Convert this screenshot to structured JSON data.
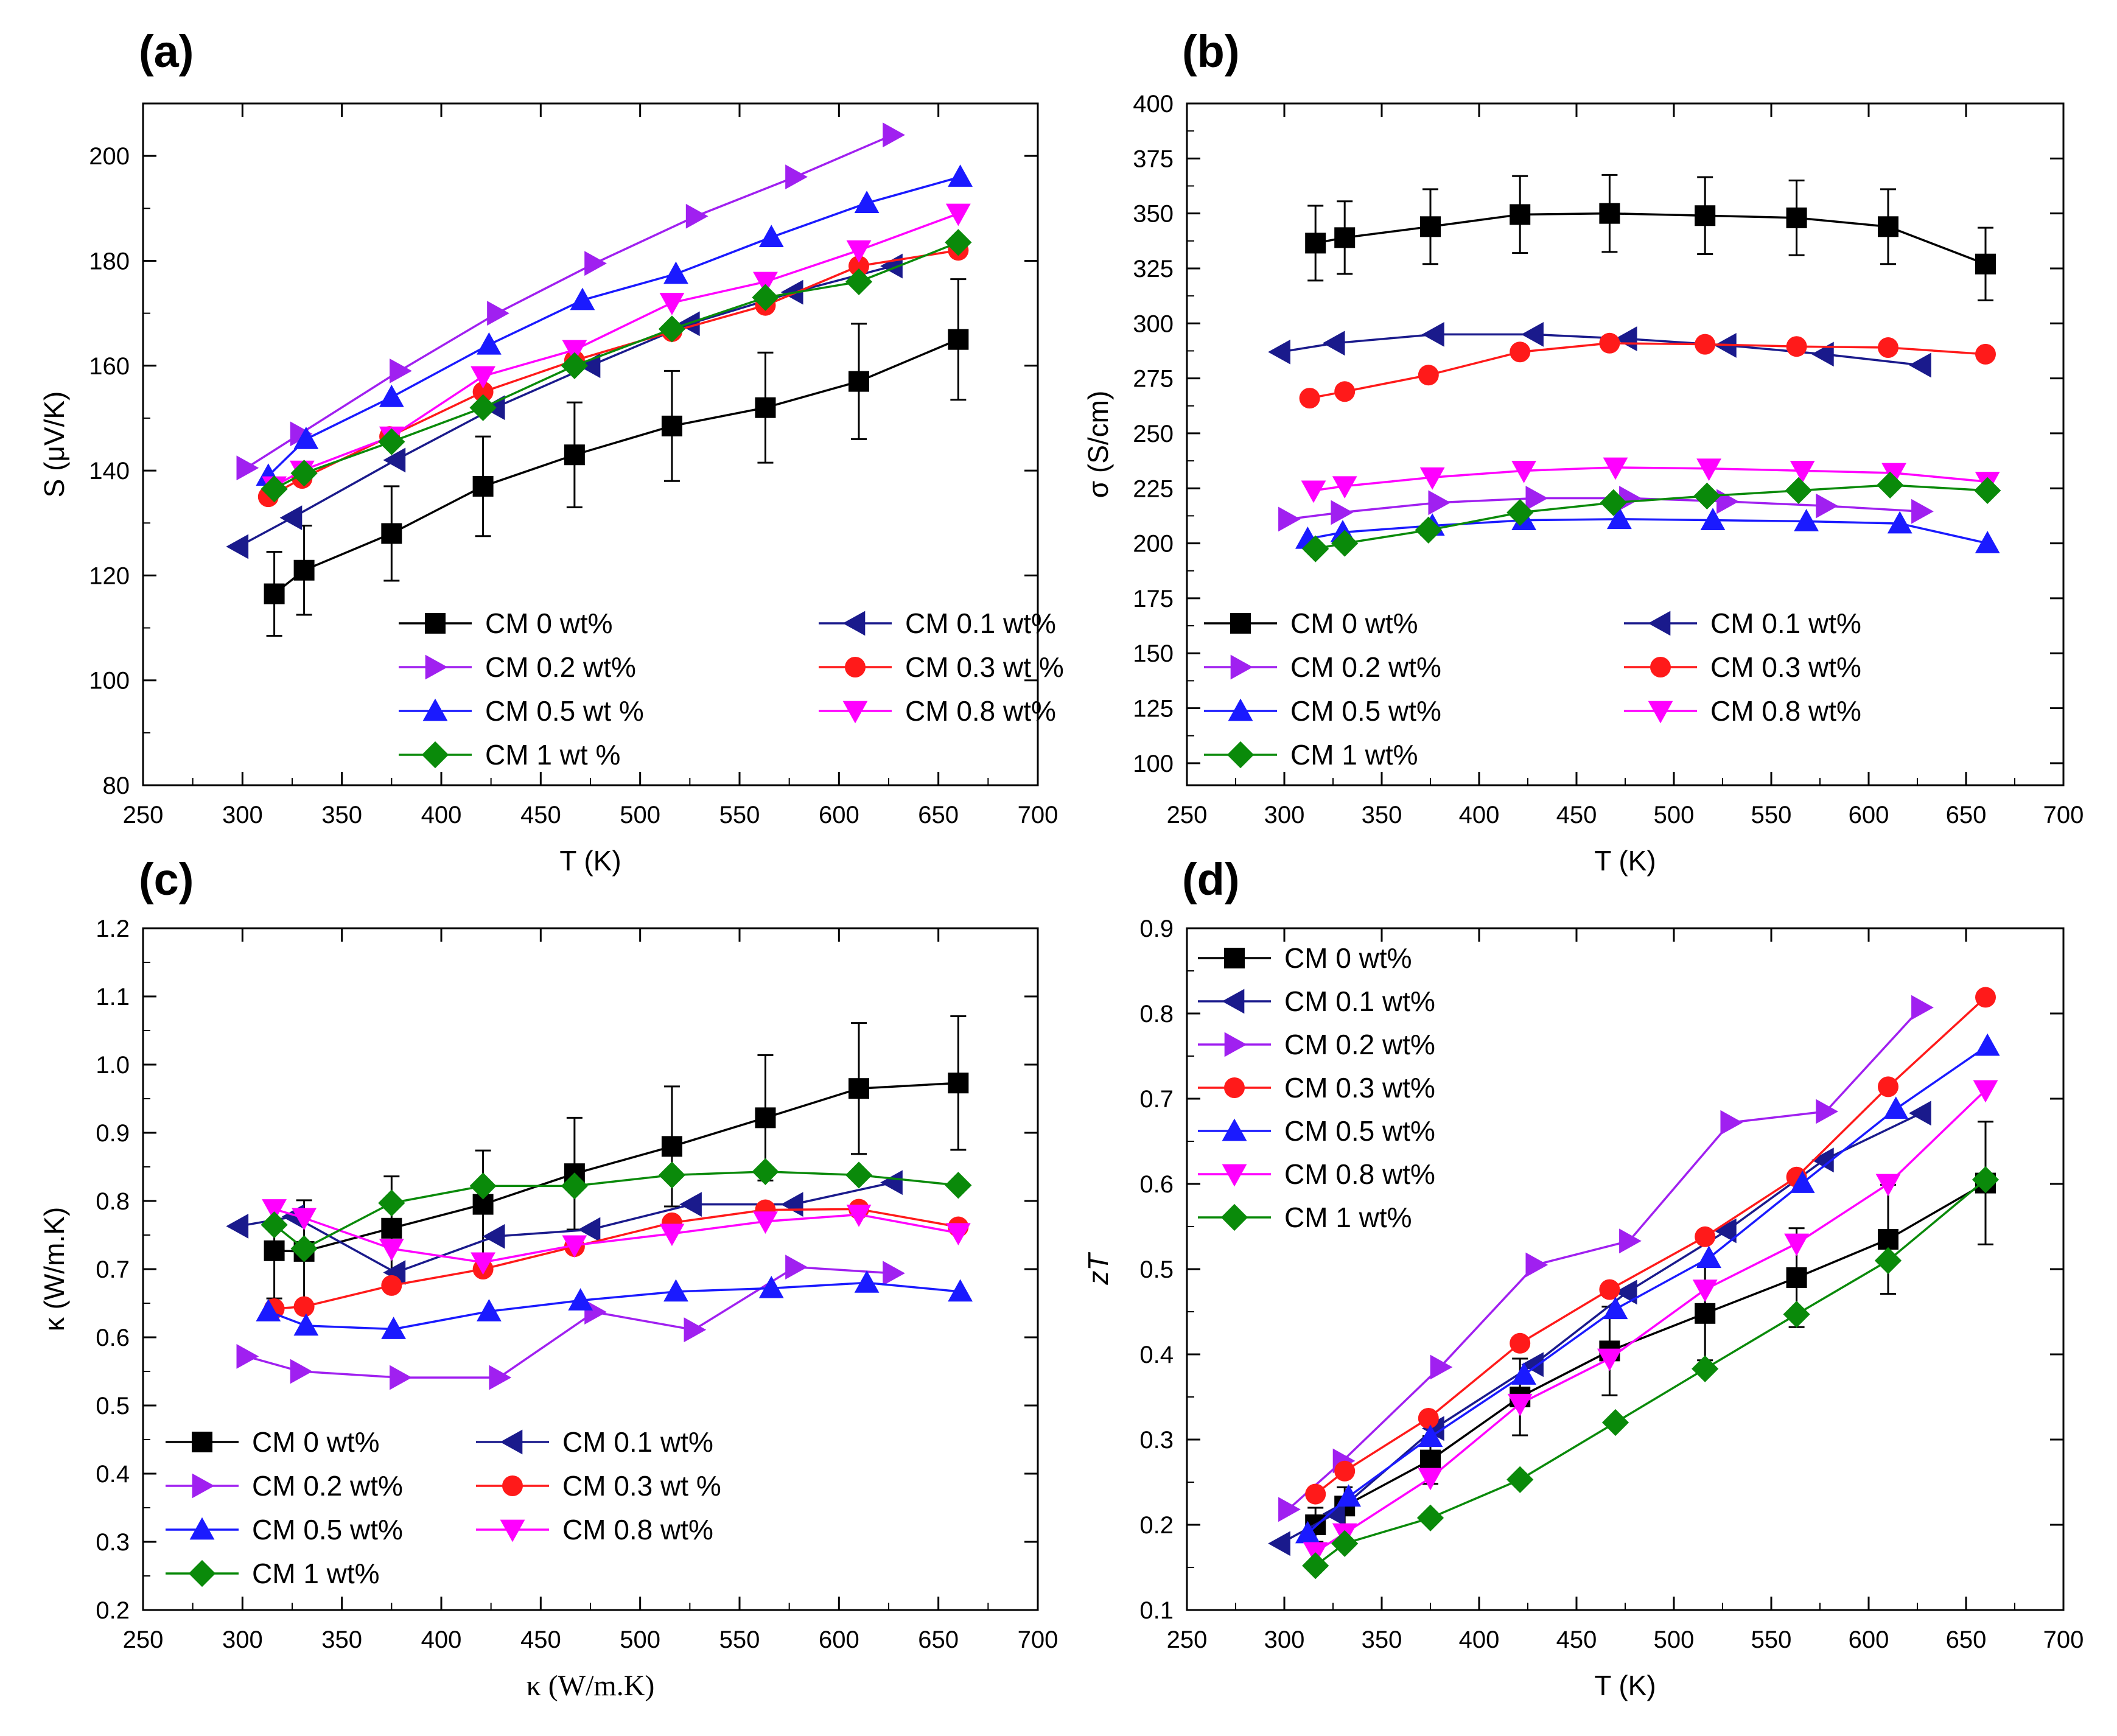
{
  "chart_data": [
    {
      "panel": "(a)",
      "type": "line",
      "xlabel": "T (K)",
      "ylabel": "S (μV/K)",
      "xlim": [
        250,
        700
      ],
      "ylim": [
        80,
        210
      ],
      "xticks": [
        250,
        300,
        350,
        400,
        450,
        500,
        550,
        600,
        650,
        700
      ],
      "yticks": [
        80,
        100,
        120,
        140,
        160,
        180,
        200
      ],
      "legend_position": "lower-right",
      "legend_cols": 2,
      "series": [
        {
          "name": "CM 0 wt%",
          "color": "#000000",
          "marker": "square",
          "x": [
            316,
            331,
            375,
            421,
            467,
            516,
            563,
            610,
            660
          ],
          "y": [
            116.5,
            121,
            128,
            137,
            143,
            148.5,
            152,
            157,
            165
          ],
          "err": [
            8,
            8.5,
            9,
            9.5,
            10,
            10.5,
            10.5,
            11,
            11.5
          ]
        },
        {
          "name": "CM 0.1 wt%",
          "color": "#1a1a8c",
          "marker": "triangle-left",
          "x": [
            298,
            325,
            377,
            427,
            475,
            525,
            577,
            627
          ],
          "y": [
            125.5,
            131,
            142,
            152,
            160,
            168,
            174,
            179
          ]
        },
        {
          "name": "CM 0.2 wt%",
          "color": "#a020f0",
          "marker": "triangle-right",
          "x": [
            302,
            329,
            379,
            428,
            477,
            528,
            578,
            627
          ],
          "y": [
            140.5,
            147,
            159,
            170,
            179.5,
            188.5,
            196,
            204
          ]
        },
        {
          "name": "CM 0.3 wt %",
          "color": "#ff1a1a",
          "marker": "circle",
          "x": [
            313,
            330,
            374,
            421,
            467,
            516,
            563,
            610,
            660
          ],
          "y": [
            135,
            138.5,
            146.5,
            155,
            161,
            166.5,
            171.5,
            179,
            182
          ]
        },
        {
          "name": "CM 0.5 wt %",
          "color": "#1a1aff",
          "marker": "triangle-up",
          "x": [
            313,
            332,
            375,
            424,
            471,
            518,
            566,
            614,
            661
          ],
          "y": [
            139,
            146,
            154,
            164,
            172.5,
            177.5,
            184.5,
            191,
            196
          ]
        },
        {
          "name": "CM 0.8 wt%",
          "color": "#ff00ff",
          "marker": "triangle-down",
          "x": [
            316,
            330,
            375,
            421,
            467,
            516,
            563,
            610,
            660
          ],
          "y": [
            137,
            140,
            146.5,
            158,
            163,
            172,
            176,
            182,
            189
          ]
        },
        {
          "name": "CM 1 wt %",
          "color": "#0a8a0a",
          "marker": "diamond",
          "x": [
            316,
            331,
            375,
            421,
            467,
            516,
            563,
            610,
            660
          ],
          "y": [
            136.5,
            139.5,
            145.5,
            152,
            160,
            167,
            173,
            176,
            183.5
          ]
        }
      ]
    },
    {
      "panel": "(b)",
      "type": "line",
      "xlabel": "T (K)",
      "ylabel": "σ (S/cm)",
      "xlim": [
        250,
        700
      ],
      "ylim": [
        90,
        400
      ],
      "xticks": [
        250,
        300,
        350,
        400,
        450,
        500,
        550,
        600,
        650,
        700
      ],
      "yticks": [
        100,
        125,
        150,
        175,
        200,
        225,
        250,
        275,
        300,
        325,
        350,
        375,
        400
      ],
      "legend_position": "lower-left",
      "legend_cols": 2,
      "series": [
        {
          "name": "CM 0 wt%",
          "color": "#000000",
          "marker": "square",
          "x": [
            316,
            331,
            375,
            421,
            467,
            516,
            563,
            610,
            660
          ],
          "y": [
            336.5,
            339,
            344,
            349.5,
            350,
            349,
            348,
            344,
            327
          ],
          "err": [
            17,
            16.5,
            17,
            17.5,
            17.5,
            17.5,
            17,
            17,
            16.5
          ]
        },
        {
          "name": "CM 0.1 wt%",
          "color": "#1a1a8c",
          "marker": "triangle-left",
          "x": [
            298,
            326,
            377,
            428,
            476,
            527,
            577,
            627
          ],
          "y": [
            287,
            291,
            295,
            295,
            293,
            290,
            286,
            281
          ]
        },
        {
          "name": "CM 0.2 wt%",
          "color": "#a020f0",
          "marker": "triangle-right",
          "x": [
            302,
            329,
            379,
            429,
            477,
            527,
            578,
            627
          ],
          "y": [
            211,
            214,
            218.5,
            220.5,
            220.5,
            219,
            217,
            214.5
          ]
        },
        {
          "name": "CM 0.3 wt%",
          "color": "#ff1a1a",
          "marker": "circle",
          "x": [
            313,
            331,
            374,
            421,
            467,
            516,
            563,
            610,
            660
          ],
          "y": [
            266,
            269,
            276.5,
            287,
            291,
            290.5,
            289.5,
            289,
            286
          ]
        },
        {
          "name": "CM 0.5 wt%",
          "color": "#1a1aff",
          "marker": "triangle-up",
          "x": [
            312,
            330,
            376,
            423,
            472,
            520,
            568,
            616,
            661
          ],
          "y": [
            202,
            205,
            208,
            210.5,
            211,
            210.5,
            210,
            209,
            200
          ]
        },
        {
          "name": "CM 0.8 wt%",
          "color": "#ff00ff",
          "marker": "triangle-down",
          "x": [
            315,
            331,
            376,
            423,
            470,
            518,
            566,
            613,
            661
          ],
          "y": [
            224,
            226,
            230,
            233,
            234.5,
            234,
            233,
            232,
            228
          ]
        },
        {
          "name": "CM 1 wt%",
          "color": "#0a8a0a",
          "marker": "diamond",
          "x": [
            316,
            331,
            374,
            421,
            469,
            517,
            564,
            611,
            661
          ],
          "y": [
            197.5,
            200,
            206,
            214,
            218.5,
            221.5,
            224,
            226.5,
            224
          ]
        }
      ]
    },
    {
      "panel": "(c)",
      "type": "line",
      "xlabel": "κ (W/m.K)",
      "ylabel": "κ (W/m.K)",
      "xlim": [
        250,
        700
      ],
      "ylim": [
        0.2,
        1.2
      ],
      "xticks": [
        250,
        300,
        350,
        400,
        450,
        500,
        550,
        600,
        650,
        700
      ],
      "yticks": [
        0.2,
        0.3,
        0.4,
        0.5,
        0.6,
        0.7,
        0.8,
        0.9,
        1.0,
        1.1,
        1.2
      ],
      "legend_position": "lower-left",
      "legend_cols": 2,
      "series": [
        {
          "name": "CM 0 wt%",
          "color": "#000000",
          "marker": "square",
          "x": [
            316,
            331,
            375,
            421,
            467,
            516,
            563,
            610,
            660
          ],
          "y": [
            0.727,
            0.726,
            0.76,
            0.795,
            0.84,
            0.88,
            0.922,
            0.965,
            0.973
          ],
          "err": [
            0.07,
            0.075,
            0.076,
            0.079,
            0.082,
            0.088,
            0.092,
            0.096,
            0.098
          ]
        },
        {
          "name": "CM 0.1 wt%",
          "color": "#1a1a8c",
          "marker": "triangle-left",
          "x": [
            298,
            326,
            377,
            427,
            475,
            526,
            577,
            627
          ],
          "y": [
            0.763,
            0.777,
            0.695,
            0.748,
            0.758,
            0.795,
            0.795,
            0.827
          ]
        },
        {
          "name": "CM 0.2 wt%",
          "color": "#a020f0",
          "marker": "triangle-right",
          "x": [
            302,
            329,
            379,
            429,
            477,
            527,
            578,
            627
          ],
          "y": [
            0.572,
            0.55,
            0.541,
            0.541,
            0.637,
            0.611,
            0.703,
            0.694
          ]
        },
        {
          "name": "CM 0.3 wt %",
          "color": "#ff1a1a",
          "marker": "circle",
          "x": [
            316,
            331,
            375,
            421,
            467,
            516,
            563,
            610,
            660
          ],
          "y": [
            0.642,
            0.645,
            0.676,
            0.7,
            0.733,
            0.768,
            0.787,
            0.788,
            0.762
          ]
        },
        {
          "name": "CM 0.5 wt%",
          "color": "#1a1aff",
          "marker": "triangle-up",
          "x": [
            313,
            332,
            376,
            424,
            470,
            518,
            566,
            614,
            661
          ],
          "y": [
            0.638,
            0.617,
            0.612,
            0.638,
            0.654,
            0.667,
            0.672,
            0.68,
            0.667
          ]
        },
        {
          "name": "CM 0.8 wt%",
          "color": "#ff00ff",
          "marker": "triangle-down",
          "x": [
            316,
            331,
            375,
            421,
            467,
            516,
            563,
            610,
            660
          ],
          "y": [
            0.788,
            0.775,
            0.73,
            0.71,
            0.735,
            0.752,
            0.77,
            0.78,
            0.753
          ]
        },
        {
          "name": "CM 1 wt%",
          "color": "#0a8a0a",
          "marker": "diamond",
          "x": [
            316,
            331,
            375,
            421,
            467,
            516,
            563,
            610,
            660
          ],
          "y": [
            0.765,
            0.73,
            0.797,
            0.822,
            0.822,
            0.838,
            0.843,
            0.838,
            0.823
          ]
        }
      ]
    },
    {
      "panel": "(d)",
      "type": "line",
      "xlabel": "T (K)",
      "ylabel": "zT",
      "xlim": [
        250,
        700
      ],
      "ylim": [
        0.1,
        0.9
      ],
      "xticks": [
        250,
        300,
        350,
        400,
        450,
        500,
        550,
        600,
        650,
        700
      ],
      "yticks": [
        0.1,
        0.2,
        0.3,
        0.4,
        0.5,
        0.6,
        0.7,
        0.8,
        0.9
      ],
      "legend_position": "top-left",
      "legend_cols": 1,
      "series": [
        {
          "name": "CM 0 wt%",
          "color": "#000000",
          "marker": "square",
          "x": [
            316,
            331,
            375,
            421,
            467,
            516,
            563,
            610,
            660
          ],
          "y": [
            0.2,
            0.222,
            0.276,
            0.35,
            0.404,
            0.448,
            0.49,
            0.535,
            0.601
          ],
          "err": [
            0.02,
            0.022,
            0.028,
            0.045,
            0.052,
            0.055,
            0.058,
            0.064,
            0.072
          ]
        },
        {
          "name": "CM 0.1 wt%",
          "color": "#1a1a8c",
          "marker": "triangle-left",
          "x": [
            298,
            326,
            377,
            428,
            476,
            527,
            577,
            627
          ],
          "y": [
            0.178,
            0.213,
            0.313,
            0.388,
            0.473,
            0.545,
            0.628,
            0.683
          ]
        },
        {
          "name": "CM 0.2 wt%",
          "color": "#a020f0",
          "marker": "triangle-right",
          "x": [
            302,
            330,
            380,
            429,
            477,
            529,
            578,
            627
          ],
          "y": [
            0.218,
            0.275,
            0.385,
            0.505,
            0.533,
            0.672,
            0.685,
            0.807
          ]
        },
        {
          "name": "CM 0.3 wt%",
          "color": "#ff1a1a",
          "marker": "circle",
          "x": [
            316,
            331,
            374,
            421,
            467,
            516,
            563,
            610,
            660
          ],
          "y": [
            0.236,
            0.263,
            0.325,
            0.413,
            0.476,
            0.538,
            0.608,
            0.714,
            0.819
          ]
        },
        {
          "name": "CM 0.5 wt%",
          "color": "#1a1aff",
          "marker": "triangle-up",
          "x": [
            312,
            333,
            375,
            423,
            470,
            518,
            566,
            614,
            661
          ],
          "y": [
            0.19,
            0.233,
            0.303,
            0.376,
            0.453,
            0.513,
            0.601,
            0.688,
            0.762
          ]
        },
        {
          "name": "CM 0.8 wt%",
          "color": "#ff00ff",
          "marker": "triangle-down",
          "x": [
            316,
            331,
            375,
            421,
            467,
            516,
            563,
            610,
            660
          ],
          "y": [
            0.168,
            0.19,
            0.255,
            0.342,
            0.395,
            0.476,
            0.53,
            0.6,
            0.71
          ]
        },
        {
          "name": "CM 1 wt%",
          "color": "#0a8a0a",
          "marker": "diamond",
          "x": [
            316,
            331,
            375,
            421,
            470,
            516,
            563,
            610,
            660
          ],
          "y": [
            0.152,
            0.178,
            0.208,
            0.253,
            0.32,
            0.383,
            0.447,
            0.51,
            0.605
          ]
        }
      ]
    }
  ]
}
